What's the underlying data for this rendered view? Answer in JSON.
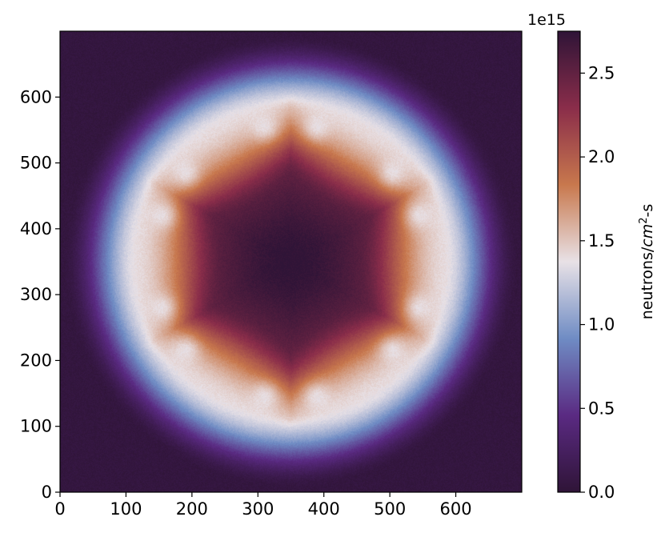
{
  "chart_data": {
    "type": "heatmap",
    "title": "",
    "xlabel": "",
    "ylabel": "",
    "xlim": [
      0,
      700
    ],
    "ylim": [
      0,
      700
    ],
    "x_ticks": [
      0,
      100,
      200,
      300,
      400,
      500,
      600
    ],
    "y_ticks": [
      0,
      100,
      200,
      300,
      400,
      500,
      600
    ],
    "colorbar": {
      "label": "neutrons/cm²-s",
      "label_main": "neutrons/",
      "label_unit_base": "cm",
      "label_unit_exp": "2",
      "label_unit_tail": "-s",
      "scale_label": "1e15",
      "range": [
        0,
        2.75
      ],
      "ticks": [
        "0.0",
        "0.5",
        "1.0",
        "1.5",
        "2.0",
        "2.5"
      ],
      "tick_values": [
        0.0,
        0.5,
        1.0,
        1.5,
        2.0,
        2.5
      ],
      "colormap": "twilight_shifted-like",
      "colors": [
        "#2f1437",
        "#5a2a82",
        "#6f8cc4",
        "#e8e1e6",
        "#c8784d",
        "#8a2d4a",
        "#2f1437"
      ]
    },
    "field": {
      "description_center": [
        350,
        350
      ],
      "core_value": 2.7,
      "edge_value": 0.05,
      "channels_shape": "hexagonal ring of 12 irradiation channels",
      "channels": [
        [
          310,
          555
        ],
        [
          390,
          555
        ],
        [
          190,
          485
        ],
        [
          505,
          485
        ],
        [
          155,
          420
        ],
        [
          545,
          420
        ],
        [
          155,
          280
        ],
        [
          545,
          280
        ],
        [
          190,
          215
        ],
        [
          505,
          215
        ],
        [
          310,
          145
        ],
        [
          390,
          145
        ]
      ]
    }
  }
}
